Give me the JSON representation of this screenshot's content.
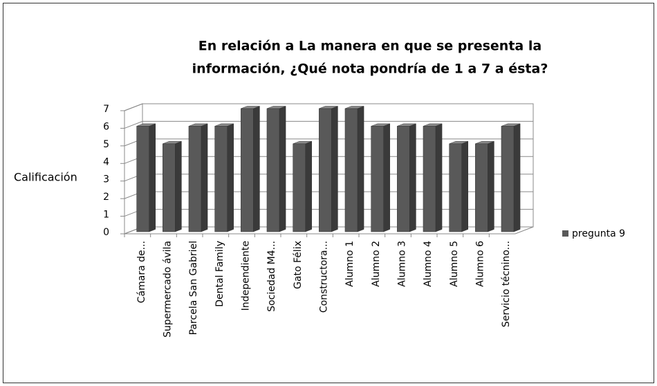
{
  "chart_data": {
    "type": "bar3d",
    "title": [
      "En relación a La manera en que se presenta la",
      "información, ¿Qué nota pondría de 1 a 7 a  ésta?"
    ],
    "y_axis_label": "Calificación",
    "categories": [
      "Cámara de...",
      "Supermercado ávila",
      "Parcela San Gabriel",
      "Dental Family",
      "Independiente",
      "Sociedad M4...",
      "Gato Félix",
      "Constructora...",
      "Alumno 1",
      "Alumno 2",
      "Alumno 3",
      "Alumno 4",
      "Alumno 5",
      "Alumno 6",
      "Servicio técnino..."
    ],
    "series": [
      {
        "name": "pregunta 9",
        "color": "#595959",
        "values": [
          6,
          5,
          6,
          6,
          7,
          7,
          5,
          7,
          7,
          6,
          6,
          6,
          5,
          5,
          6
        ]
      }
    ],
    "ylim": [
      0,
      7
    ],
    "yticks": [
      0,
      1,
      2,
      3,
      4,
      5,
      6,
      7
    ],
    "grid": true,
    "legend": "right"
  }
}
